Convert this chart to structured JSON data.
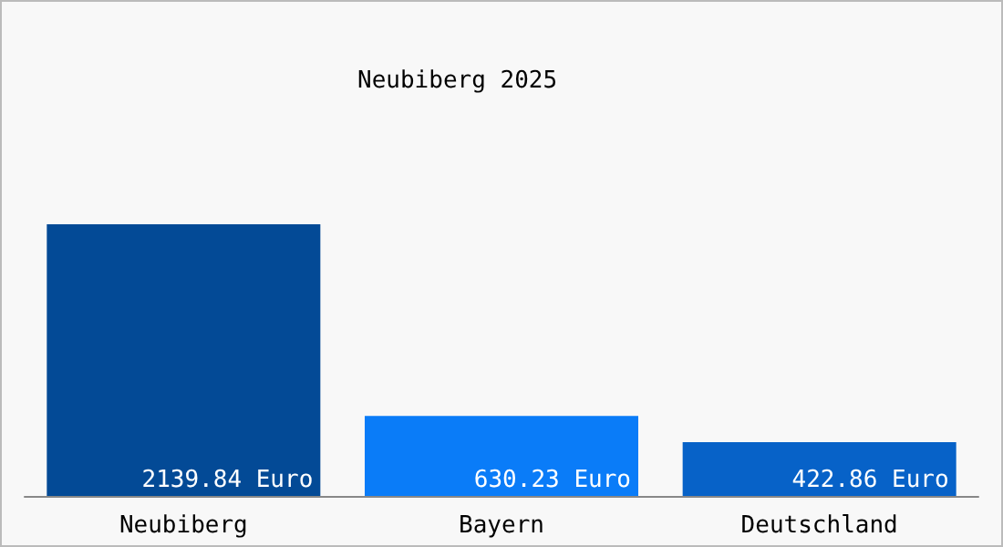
{
  "chart_data": {
    "type": "bar",
    "title": "Neubiberg 2025",
    "categories": [
      "Neubiberg",
      "Bayern",
      "Deutschland"
    ],
    "values": [
      2139.84,
      630.23,
      422.86
    ],
    "colors": [
      "#034a96",
      "#0a7cf8",
      "#0762c8"
    ],
    "value_labels": [
      "2139.84 Euro",
      "630.23 Euro",
      "422.86 Euro"
    ]
  }
}
